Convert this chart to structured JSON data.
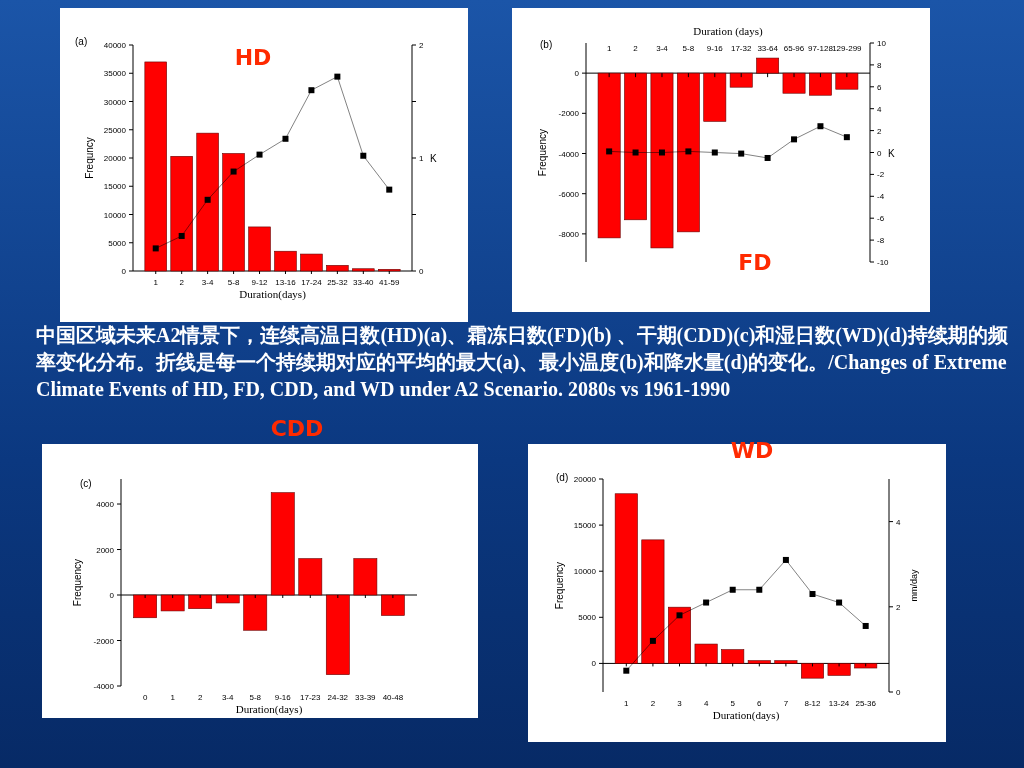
{
  "chart_data": [
    {
      "type": "bar",
      "title": "HD",
      "annotations": [
        "(a)"
      ],
      "xlabel": "Duration(days)",
      "ylabel": "Frequncy",
      "y2label": "K",
      "marker": "square",
      "categories": [
        "1",
        "2",
        "3-4",
        "5-8",
        "9-12",
        "13-16",
        "17-24",
        "25-32",
        "33-40",
        "41-59"
      ],
      "series": [
        {
          "type": "bar",
          "color": "#ff0000",
          "values": [
            37000,
            20300,
            24400,
            20800,
            7800,
            3500,
            3000,
            1000,
            400,
            300
          ]
        },
        {
          "type": "line",
          "axis": "y2",
          "color": "#000000",
          "values": [
            0.2,
            0.31,
            0.63,
            0.88,
            1.03,
            1.17,
            1.6,
            1.72,
            1.02,
            0.72
          ]
        }
      ],
      "ylim": [
        0,
        40000
      ],
      "yticks": [
        0,
        5000,
        10000,
        15000,
        20000,
        25000,
        30000,
        35000,
        40000
      ],
      "y2lim": [
        0,
        2
      ],
      "y2ticks": [
        0,
        {
          "value": 0.5,
          "label": null
        },
        1,
        {
          "value": 1.5,
          "label": null
        },
        2
      ]
    },
    {
      "type": "bar",
      "title": "FD",
      "annotations": [
        "(b)"
      ],
      "xlabel": "Duration (days)",
      "ylabel": "Frequency",
      "y2label": "K",
      "marker": "square",
      "categories": [
        "1",
        "2",
        "3-4",
        "5-8",
        "9-16",
        "17-32",
        "33-64",
        "65-96",
        "97-128",
        "129-299"
      ],
      "series": [
        {
          "type": "bar",
          "color": "#ff0000",
          "values": [
            -8200,
            -7300,
            -8700,
            -7900,
            -2400,
            -700,
            750,
            -1000,
            -1100,
            -800
          ]
        },
        {
          "type": "line",
          "axis": "y2",
          "color": "#000000",
          "values": [
            0.1,
            0,
            0,
            0.1,
            0,
            -0.1,
            -0.5,
            1.2,
            2.4,
            1.4
          ]
        }
      ],
      "ylim": [
        -9400,
        1500
      ],
      "yticks": [
        -8000,
        -6000,
        -4000,
        -2000,
        0
      ],
      "y2lim": [
        -10,
        10
      ],
      "y2ticks": [
        -10,
        -8,
        -6,
        -4,
        -2,
        0,
        2,
        4,
        6,
        8,
        10
      ]
    },
    {
      "type": "other",
      "annotations": [
        "中国区域未来A2情景下，连续高温日数(HD)(a)、霜冻日数(FD)(b) 、干期(CDD)(c)和湿日数(WD)(d)持续期的频率变化分布。折线是每一个持续期对应的平均的最大(a)、最小温度(b)和降水量(d)的变化。/Changes of Extreme Climate Events of HD, FD, CDD, and WD under A2 Scenario. 2080s vs 1961-1990"
      ]
    },
    {
      "type": "bar",
      "title": "CDD",
      "annotations": [
        "(c)"
      ],
      "xlabel": "Duration(days)",
      "ylabel": "Frequency",
      "categories": [
        "0",
        "1",
        "2",
        "3-4",
        "5-8",
        "9-16",
        "17-23",
        "24-32",
        "33-39",
        "40-48"
      ],
      "series": [
        {
          "type": "bar",
          "color": "#ff0000",
          "values": [
            -1000,
            -700,
            -600,
            -350,
            -1550,
            4500,
            1600,
            -3500,
            1600,
            -900
          ]
        }
      ],
      "ylim": [
        -4000,
        5100
      ],
      "yticks": [
        -4000,
        -2000,
        0,
        2000,
        4000
      ]
    },
    {
      "type": "bar",
      "title": "WD",
      "annotations": [
        "(d)"
      ],
      "xlabel": "Duration(days)",
      "ylabel": "Frequency",
      "y2label": "mm/day",
      "marker": "square",
      "categories": [
        "1",
        "2",
        "3",
        "4",
        "5",
        "6",
        "7",
        "8-12",
        "13-24",
        "25-36"
      ],
      "series": [
        {
          "type": "bar",
          "color": "#ff0000",
          "values": [
            18400,
            13400,
            6100,
            2100,
            1500,
            300,
            300,
            -1600,
            -1300,
            -500
          ]
        },
        {
          "type": "line",
          "axis": "y2",
          "color": "#000000",
          "values": [
            0.5,
            1.2,
            1.8,
            2.1,
            2.4,
            2.4,
            3.1,
            2.3,
            2.1,
            1.55
          ]
        }
      ],
      "ylim": [
        -3100,
        20000
      ],
      "yticks": [
        0,
        5000,
        10000,
        15000,
        20000
      ],
      "y2lim": [
        0,
        5
      ],
      "y2ticks": [
        0,
        2,
        4
      ]
    }
  ]
}
